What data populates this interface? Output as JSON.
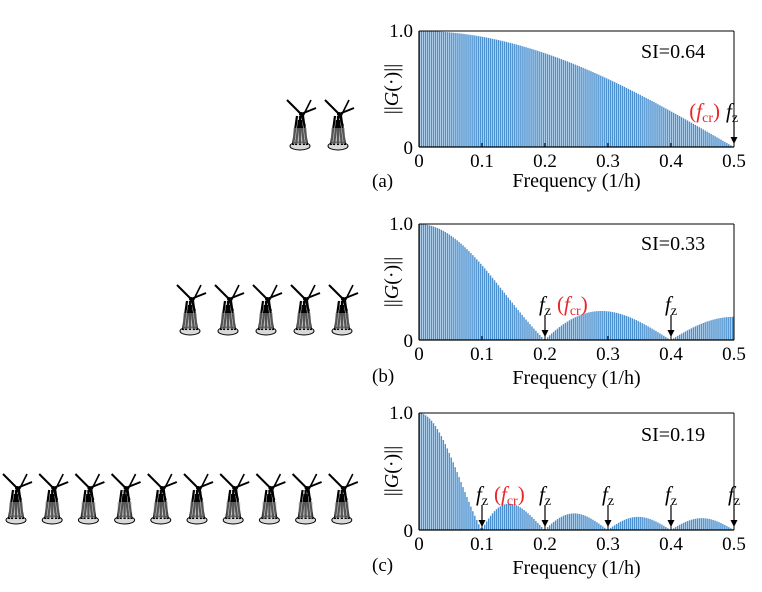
{
  "colors": {
    "bar": "#4a90cf",
    "bar_edge": "#2f75b8",
    "highlight": "#e8262a",
    "axis": "#000000"
  },
  "chart_data": [
    {
      "type": "bar",
      "panel_label": "(a)",
      "turbine_count": 2,
      "xlabel": "Frequency (1/h)",
      "ylabel": "||G(·)||",
      "xlim": [
        0,
        0.5
      ],
      "ylim": [
        0,
        1
      ],
      "xticks": [
        "0",
        "0.1",
        "0.2",
        "0.3",
        "0.4",
        "0.5"
      ],
      "yticks": [
        "0",
        "1.0"
      ],
      "si_label": "SI=0.64",
      "n_turbines_period": 2,
      "samples": {
        "x": [
          0,
          0.05,
          0.1,
          0.15,
          0.2,
          0.25,
          0.3,
          0.35,
          0.4,
          0.45,
          0.5
        ],
        "y": [
          1.0,
          0.988,
          0.951,
          0.891,
          0.809,
          0.707,
          0.588,
          0.454,
          0.309,
          0.156,
          0.0
        ]
      },
      "markers": [
        {
          "x": 0.5,
          "fz": "f",
          "fz_sub": "z",
          "fcr": "(f",
          "fcr_sub": "cr",
          "fcr_close": ")",
          "order": "cr-first"
        }
      ]
    },
    {
      "type": "bar",
      "panel_label": "(b)",
      "turbine_count": 5,
      "xlabel": "Frequency (1/h)",
      "ylabel": "||G(·)||",
      "xlim": [
        0,
        0.5
      ],
      "ylim": [
        0,
        1
      ],
      "xticks": [
        "0",
        "0.1",
        "0.2",
        "0.3",
        "0.4",
        "0.5"
      ],
      "yticks": [
        "0",
        "1.0"
      ],
      "si_label": "SI=0.33",
      "n_turbines_period": 5,
      "samples": {
        "x": [
          0,
          0.05,
          0.1,
          0.15,
          0.2,
          0.25,
          0.3,
          0.35,
          0.4,
          0.45,
          0.5
        ],
        "y": [
          1.0,
          0.927,
          0.724,
          0.44,
          0.0,
          0.185,
          0.236,
          0.165,
          0.0,
          0.132,
          0.2
        ]
      },
      "markers": [
        {
          "x": 0.2,
          "fz": "f",
          "fz_sub": "z",
          "fcr": "(f",
          "fcr_sub": "cr",
          "fcr_close": ")",
          "order": "z-first"
        },
        {
          "x": 0.4,
          "fz": "f",
          "fz_sub": "z"
        }
      ]
    },
    {
      "type": "bar",
      "panel_label": "(c)",
      "turbine_count": 10,
      "xlabel": "Frequency (1/h)",
      "ylabel": "||G(·)||",
      "xlim": [
        0,
        0.5
      ],
      "ylim": [
        0,
        1
      ],
      "xticks": [
        "0",
        "0.1",
        "0.2",
        "0.3",
        "0.4",
        "0.5"
      ],
      "yticks": [
        "0",
        "1.0"
      ],
      "si_label": "SI=0.19",
      "n_turbines_period": 10,
      "samples": {
        "x": [
          0,
          0.05,
          0.1,
          0.15,
          0.2,
          0.25,
          0.3,
          0.35,
          0.4,
          0.45,
          0.5
        ],
        "y": [
          1.0,
          0.637,
          0.0,
          0.212,
          0.0,
          0.127,
          0.0,
          0.091,
          0.0,
          0.071,
          0.0
        ]
      },
      "markers": [
        {
          "x": 0.1,
          "fz": "f",
          "fz_sub": "z",
          "fcr": "(f",
          "fcr_sub": "cr",
          "fcr_close": ")",
          "order": "z-first"
        },
        {
          "x": 0.2,
          "fz": "f",
          "fz_sub": "z"
        },
        {
          "x": 0.3,
          "fz": "f",
          "fz_sub": "z"
        },
        {
          "x": 0.4,
          "fz": "f",
          "fz_sub": "z"
        },
        {
          "x": 0.5,
          "fz": "f",
          "fz_sub": "z"
        }
      ]
    }
  ]
}
